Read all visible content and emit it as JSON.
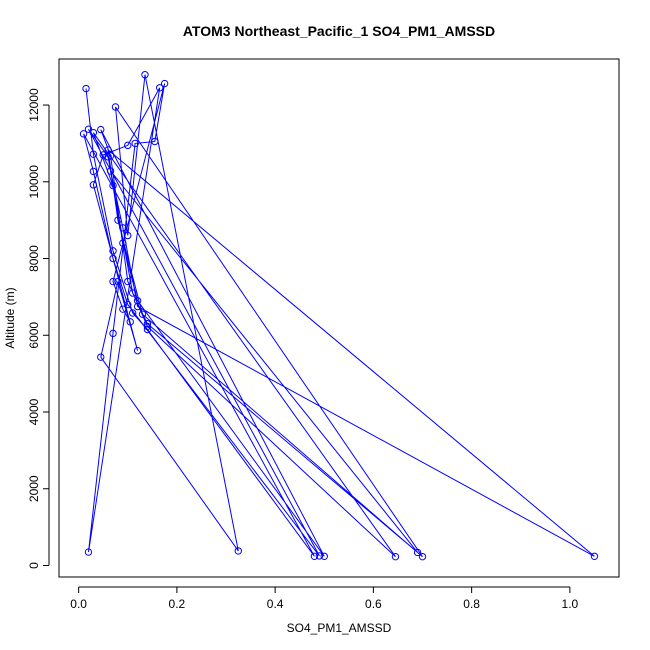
{
  "chart_data": {
    "type": "line",
    "title": "ATOM3 Northeast_Pacific_1 SO4_PM1_AMSSD",
    "xlabel": "SO4_PM1_AMSSD",
    "ylabel": "Altitude (m)",
    "xlim": [
      -0.04,
      1.1
    ],
    "ylim": [
      -300,
      13200
    ],
    "x_ticks": [
      0.0,
      0.2,
      0.4,
      0.6,
      0.8,
      1.0
    ],
    "x_tick_labels": [
      "0.0",
      "0.2",
      "0.4",
      "0.6",
      "0.8",
      "1.0"
    ],
    "y_ticks": [
      0,
      2000,
      4000,
      6000,
      8000,
      10000,
      12000
    ],
    "y_tick_labels": [
      "0",
      "2000",
      "4000",
      "6000",
      "8000",
      "10000",
      "12000"
    ],
    "grid": false,
    "color": "#0000ff",
    "series": [
      {
        "x": [
          0.015,
          0.03,
          0.07,
          0.11,
          0.14,
          0.48,
          0.01,
          0.03,
          0.07,
          0.1,
          0.49,
          0.02,
          0.06,
          0.09,
          0.12,
          0.5,
          0.045,
          0.065,
          0.1,
          0.14,
          0.645,
          0.03,
          0.07,
          0.11,
          0.14,
          0.69,
          0.065,
          0.09,
          0.12,
          1.05,
          0.06,
          0.08,
          0.13,
          0.7,
          0.075,
          0.1,
          0.135,
          0.325,
          0.045,
          0.08,
          0.12,
          0.03,
          0.05,
          0.1,
          0.165,
          0.02,
          0.07,
          0.115,
          0.155,
          0.175,
          0.07,
          0.09,
          0.105
        ],
        "y": [
          12430,
          10720,
          8200,
          6580,
          6150,
          240,
          11250,
          10270,
          8000,
          6800,
          250,
          11370,
          10650,
          8400,
          6900,
          240,
          11360,
          10680,
          7400,
          6230,
          230,
          11280,
          9900,
          7100,
          6300,
          340,
          10280,
          8800,
          6750,
          240,
          10830,
          9000,
          6550,
          230,
          11950,
          8600,
          12790,
          380,
          5430,
          7400,
          5600,
          9920,
          10700,
          10950,
          12450,
          350,
          6050,
          11000,
          11050,
          12560,
          7400,
          6680,
          6350
        ]
      }
    ]
  }
}
